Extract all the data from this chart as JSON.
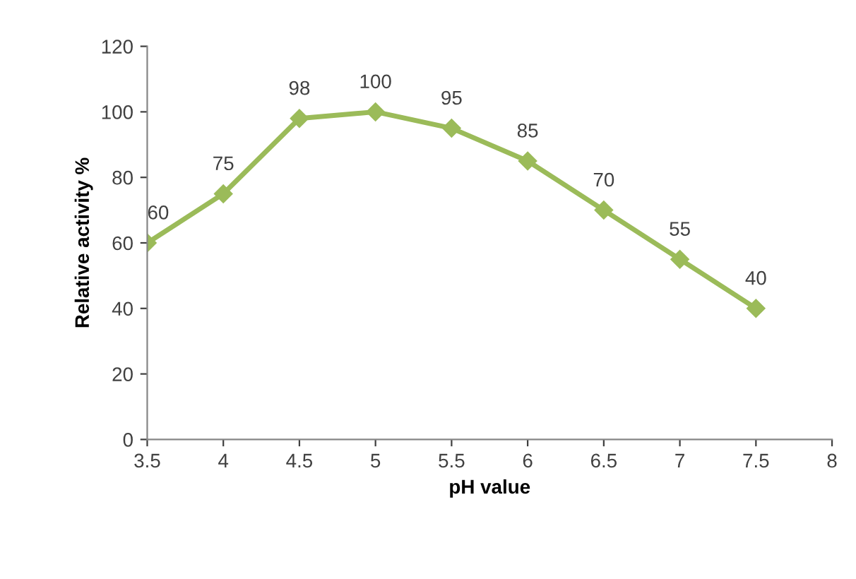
{
  "chart_data": {
    "type": "line",
    "xlabel": "pH value",
    "ylabel": "Relative activity %",
    "x": [
      3.5,
      4,
      4.5,
      5,
      5.5,
      6,
      6.5,
      7,
      7.5
    ],
    "series": [
      {
        "color": "#9bbb59",
        "values": [
          60,
          75,
          98,
          100,
          95,
          85,
          70,
          55,
          40
        ]
      }
    ],
    "xlim": [
      3.5,
      8
    ],
    "xticks": [
      3.5,
      4,
      4.5,
      5,
      5.5,
      6,
      6.5,
      7,
      7.5,
      8
    ],
    "ylim": [
      0,
      120
    ],
    "yticks": [
      0,
      20,
      40,
      60,
      80,
      100,
      120
    ],
    "marker": "diamond",
    "line_style": "solid",
    "data_labels": true,
    "grid": false,
    "legend": false
  }
}
